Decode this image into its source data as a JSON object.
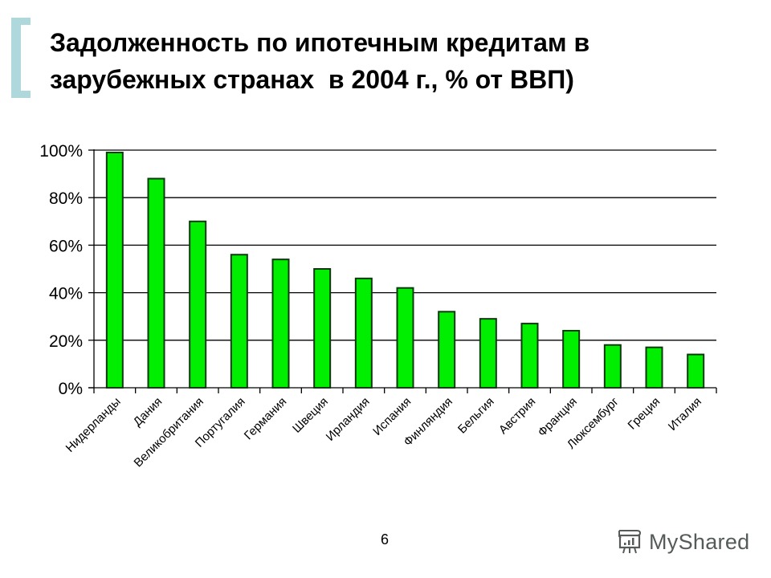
{
  "slide": {
    "title_lines": [
      "Задолженность по ипотечным кредитам в",
      "зарубежных странах  в 2004 г., % от ВВП)"
    ],
    "page_number": "6",
    "watermark": {
      "icon": "presentation-board-icon",
      "text": "MyShared"
    },
    "accent_color": "#aed8dc"
  },
  "chart_data": {
    "type": "bar",
    "title": "Задолженность по ипотечным кредитам в зарубежных странах  в 2004 г., % от ВВП)",
    "xlabel": "",
    "ylabel": "",
    "ylim": [
      0,
      100
    ],
    "yticks": [
      "0%",
      "20%",
      "40%",
      "60%",
      "80%",
      "100%"
    ],
    "grid": true,
    "legend": null,
    "bar_color": "#00ee00",
    "bar_edge_color": "#0a3a0a",
    "categories": [
      "Нидерланды",
      "Дания",
      "Великобритания",
      "Португалия",
      "Германия",
      "Швеция",
      "Ирландия",
      "Испания",
      "Финляндия",
      "Бельгия",
      "Австрия",
      "Франция",
      "Люксембург",
      "Греция",
      "Италия"
    ],
    "values": [
      99,
      88,
      70,
      56,
      54,
      50,
      46,
      42,
      32,
      29,
      27,
      24,
      18,
      17,
      14
    ],
    "unit": "%"
  }
}
